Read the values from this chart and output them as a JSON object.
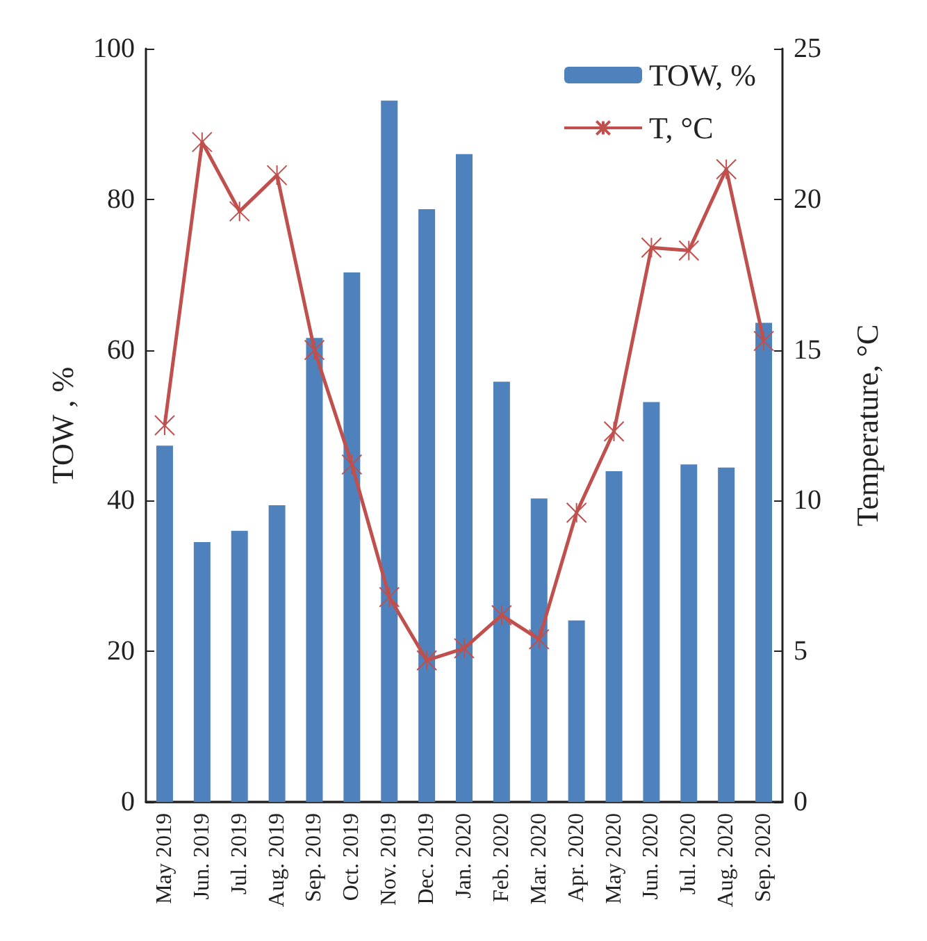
{
  "chart_data": {
    "type": "bar",
    "categories": [
      "May 2019",
      "Jun. 2019",
      "Jul. 2019",
      "Aug. 2019",
      "Sep. 2019",
      "Oct. 2019",
      "Nov. 2019",
      "Dec. 2019",
      "Jan. 2020",
      "Feb. 2020",
      "Mar. 2020",
      "Apr. 2020",
      "May 2020",
      "Jun. 2020",
      "Jul. 2020",
      "Aug. 2020",
      "Sep. 2020"
    ],
    "series": [
      {
        "name": "TOW, %",
        "color": "#4f81bd",
        "values": [
          47.3,
          34.5,
          36.0,
          39.4,
          61.6,
          70.3,
          93.1,
          78.7,
          86.0,
          55.8,
          40.3,
          24.1,
          43.9,
          53.1,
          44.8,
          44.4,
          63.6
        ]
      },
      {
        "name": "T, °C",
        "type": "line",
        "axis": "y2",
        "color": "#c0504d",
        "marker": "cross",
        "values": [
          12.5,
          21.9,
          19.6,
          20.8,
          15.0,
          11.2,
          6.8,
          4.7,
          5.1,
          6.2,
          5.4,
          9.6,
          12.3,
          18.4,
          18.3,
          21.0,
          15.3
        ]
      }
    ],
    "ylabel": "TOW , %",
    "y2label": "Temperature, °C",
    "ylim": [
      0,
      100
    ],
    "yticks": [
      0,
      20,
      40,
      60,
      80,
      100
    ],
    "y2lim": [
      0,
      25
    ],
    "y2ticks": [
      0,
      5,
      10,
      15,
      20,
      25
    ],
    "grid": false,
    "legend": "top right"
  }
}
